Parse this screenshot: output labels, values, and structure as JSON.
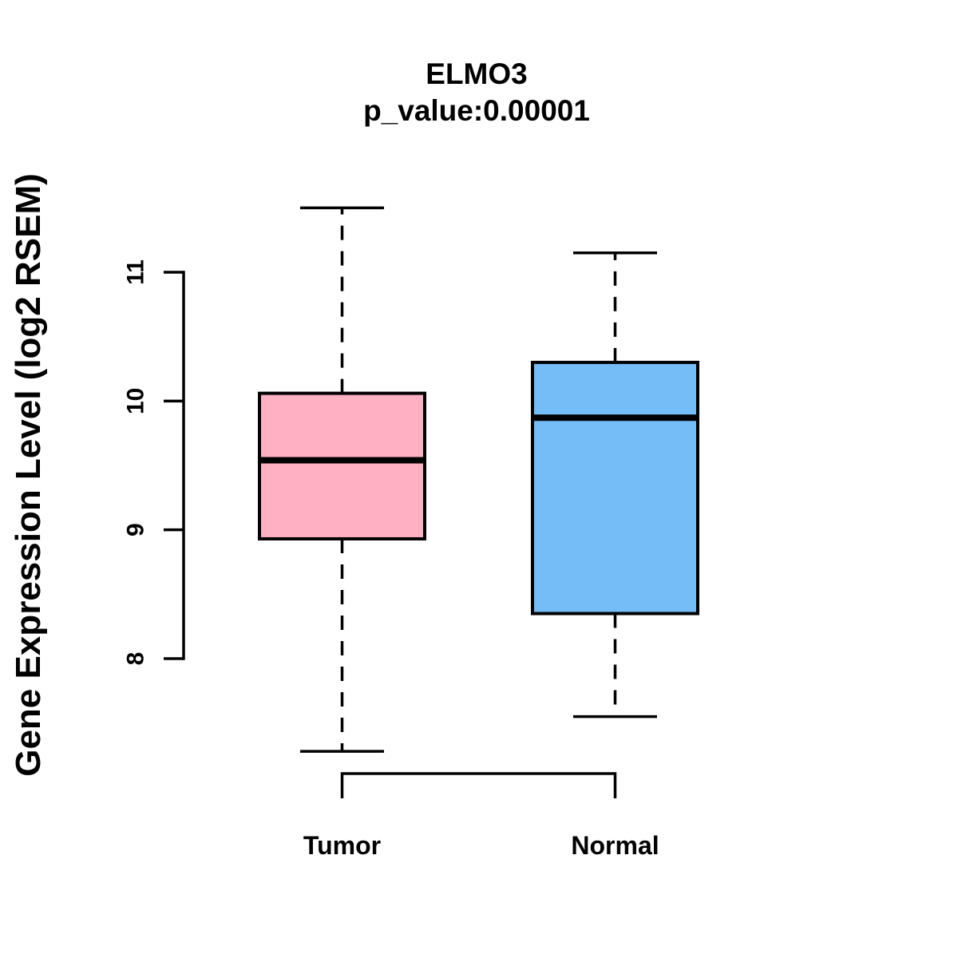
{
  "title": "ELMO3",
  "subtitle": "p_value:0.00001",
  "y_axis": {
    "label": "Gene Expression Level (log2 RSEM)",
    "ticks": [
      8,
      9,
      10,
      11
    ]
  },
  "x_axis": {
    "categories": [
      "Tumor",
      "Normal"
    ]
  },
  "colors": {
    "tumor_box": "#FFB0C3",
    "normal_box": "#74BDF7",
    "line": "#000000"
  },
  "chart_data": {
    "type": "boxplot",
    "title": "ELMO3",
    "subtitle": "p_value:0.00001",
    "xlabel": "",
    "ylabel": "Gene Expression Level (log2 RSEM)",
    "categories": [
      "Tumor",
      "Normal"
    ],
    "y_ticks": [
      8,
      9,
      10,
      11
    ],
    "ylim": [
      7.1,
      11.6
    ],
    "grid": false,
    "legend": "none",
    "series": [
      {
        "name": "Tumor",
        "color": "#FFB0C3",
        "lower_whisker": 7.28,
        "q1": 8.93,
        "median": 9.54,
        "q3": 10.06,
        "upper_whisker": 11.5
      },
      {
        "name": "Normal",
        "color": "#74BDF7",
        "lower_whisker": 7.55,
        "q1": 8.35,
        "median": 9.87,
        "q3": 10.3,
        "upper_whisker": 11.15
      }
    ]
  }
}
